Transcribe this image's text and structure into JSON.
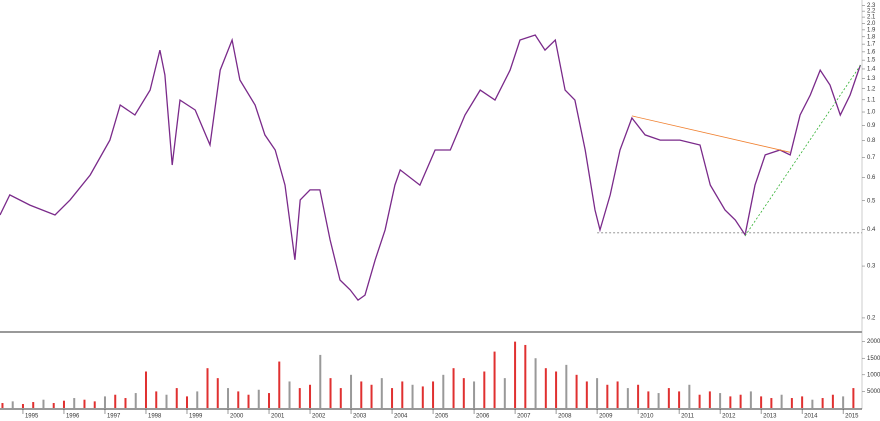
{
  "chart_data": [
    {
      "type": "line",
      "log_scale": true,
      "xlim": [
        1994.44,
        2015.46
      ],
      "ylim": [
        0.182,
        2.4
      ],
      "yticks": [
        0.2,
        0.3,
        0.4,
        0.5,
        0.6,
        0.7,
        0.8,
        0.9,
        {
          "value": 1,
          "label": "1.0"
        },
        1.1,
        1.2,
        1.3,
        1.4,
        1.5,
        1.6,
        1.7,
        1.8,
        1.9,
        {
          "value": 2,
          "label": "2.0"
        },
        2.1,
        2.2,
        2.3
      ],
      "x": [
        1994.44,
        1994.68,
        1995.17,
        1995.78,
        1996.15,
        1996.64,
        1997.12,
        1997.37,
        1997.73,
        1998.1,
        1998.34,
        1998.46,
        1998.64,
        1998.83,
        1999.2,
        1999.56,
        1999.81,
        2000.1,
        2000.29,
        2000.66,
        2000.9,
        2001.15,
        2001.39,
        2001.63,
        2001.76,
        2002.0,
        2002.24,
        2002.49,
        2002.73,
        2002.98,
        2003.17,
        2003.34,
        2003.59,
        2003.83,
        2004.07,
        2004.2,
        2004.68,
        2005.05,
        2005.42,
        2005.78,
        2006.15,
        2006.51,
        2006.88,
        2007.12,
        2007.49,
        2007.73,
        2007.98,
        2008.22,
        2008.46,
        2008.71,
        2008.95,
        2009.07,
        2009.32,
        2009.56,
        2009.85,
        2010.17,
        2010.54,
        2011.02,
        2011.51,
        2011.76,
        2012.12,
        2012.37,
        2012.61,
        2012.85,
        2013.1,
        2013.46,
        2013.71,
        2013.95,
        2014.2,
        2014.44,
        2014.68,
        2014.93,
        2015.17,
        2015.42
      ],
      "series": [
        {
          "color": "#7a2a8a",
          "values": [
            0.447,
            0.523,
            0.483,
            0.447,
            0.503,
            0.611,
            0.803,
            1.056,
            0.977,
            1.187,
            1.623,
            1.335,
            0.661,
            1.098,
            1.016,
            0.773,
            1.388,
            1.755,
            1.284,
            1.056,
            0.836,
            0.743,
            0.565,
            0.315,
            0.503,
            0.544,
            0.544,
            0.368,
            0.269,
            0.249,
            0.23,
            0.239,
            0.315,
            0.398,
            0.565,
            0.636,
            0.565,
            0.743,
            0.743,
            0.977,
            1.187,
            1.098,
            1.388,
            1.755,
            1.825,
            1.623,
            1.755,
            1.187,
            1.098,
            0.743,
            0.465,
            0.398,
            0.523,
            0.743,
            0.954,
            0.836,
            0.803,
            0.803,
            0.773,
            0.565,
            0.465,
            0.43,
            0.383,
            0.565,
            0.715,
            0.743,
            0.715,
            0.977,
            1.142,
            1.388,
            1.235,
            0.977,
            1.142,
            1.444
          ]
        }
      ],
      "lines": [
        {
          "color": "#f08030",
          "dashed": false,
          "x": [
            2009.85,
            2013.71
          ],
          "y": [
            0.97,
            0.73
          ]
        },
        {
          "color": "#30b030",
          "dashed": true,
          "x": [
            2012.61,
            2015.42
          ],
          "y": [
            0.38,
            1.44
          ]
        },
        {
          "color": "#888888",
          "dashed": true,
          "x": [
            2009.0,
            2015.46
          ],
          "y": [
            0.389,
            0.389
          ]
        }
      ]
    },
    {
      "type": "bar",
      "xlim": [
        1994.44,
        2015.46
      ],
      "ylim": [
        0,
        22000
      ],
      "yticks": [
        5000,
        10000,
        15000,
        20000
      ],
      "xticks": [
        1995,
        1996,
        1997,
        1998,
        1999,
        2000,
        2001,
        2002,
        2003,
        2004,
        2005,
        2006,
        2007,
        2008,
        2009,
        2010,
        2011,
        2012,
        2013,
        2014,
        2015
      ],
      "x": [
        1994.5,
        1994.75,
        1995,
        1995.25,
        1995.5,
        1995.75,
        1996,
        1996.25,
        1996.5,
        1996.75,
        1997,
        1997.25,
        1997.5,
        1997.75,
        1998,
        1998.25,
        1998.5,
        1998.75,
        1999,
        1999.25,
        1999.5,
        1999.75,
        2000,
        2000.25,
        2000.5,
        2000.75,
        2001,
        2001.25,
        2001.5,
        2001.75,
        2002,
        2002.25,
        2002.5,
        2002.75,
        2003,
        2003.25,
        2003.5,
        2003.75,
        2004,
        2004.25,
        2004.5,
        2004.75,
        2005,
        2005.25,
        2005.5,
        2005.75,
        2006,
        2006.25,
        2006.5,
        2006.75,
        2007,
        2007.25,
        2007.5,
        2007.75,
        2008,
        2008.25,
        2008.5,
        2008.75,
        2009,
        2009.25,
        2009.5,
        2009.75,
        2010,
        2010.25,
        2010.5,
        2010.75,
        2011,
        2011.25,
        2011.5,
        2011.75,
        2012,
        2012.25,
        2012.5,
        2012.75,
        2013,
        2013.25,
        2013.5,
        2013.75,
        2014,
        2014.25,
        2014.5,
        2014.75,
        2015,
        2015.25
      ],
      "series": [
        {
          "color": "#e03030",
          "values": [
            1500,
            2000,
            1200,
            1800,
            2500,
            1500,
            2200,
            3000,
            2500,
            2000,
            3500,
            4000,
            3000,
            4500,
            11000,
            5000,
            4000,
            6000,
            3500,
            5000,
            12000,
            9000,
            6000,
            5000,
            4000,
            5500,
            4500,
            14000,
            8000,
            6000,
            7000,
            16000,
            9000,
            6000,
            10000,
            8000,
            7000,
            9000,
            6000,
            8000,
            7000,
            6500,
            8000,
            10000,
            12000,
            9000,
            8000,
            11000,
            17000,
            9000,
            20000,
            19000,
            15000,
            12000,
            11000,
            13000,
            10000,
            8000,
            9000,
            7000,
            8000,
            6000,
            7000,
            5000,
            4500,
            6000,
            5000,
            7000,
            4000,
            5000,
            4500,
            3500,
            4000,
            5000,
            3500,
            3000,
            4000,
            3000,
            3500,
            2500,
            3000,
            4000,
            3500,
            6000
          ]
        }
      ]
    }
  ]
}
